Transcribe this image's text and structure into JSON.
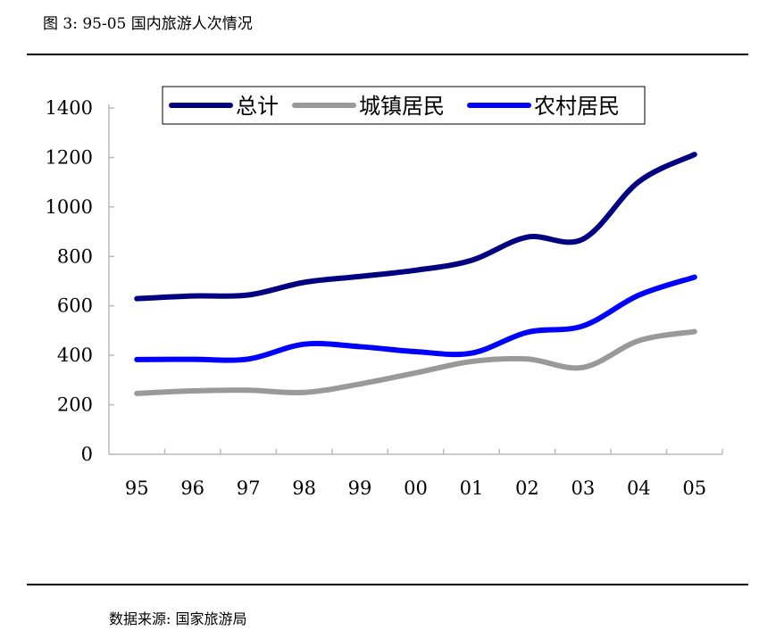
{
  "header": {
    "title": "图 3: 95-05 国内旅游人次情况"
  },
  "footer": {
    "source": "数据来源: 国家旅游局"
  },
  "chart_data": {
    "type": "line",
    "title": "",
    "xlabel": "",
    "ylabel": "",
    "categories": [
      "95",
      "96",
      "97",
      "98",
      "99",
      "00",
      "01",
      "02",
      "03",
      "04",
      "05"
    ],
    "ylim": [
      0,
      1400
    ],
    "yticks": [
      "0",
      "200",
      "400",
      "600",
      "800",
      "1000",
      "1200",
      "1400"
    ],
    "grid": false,
    "legend_position": "top",
    "smooth": true,
    "series": [
      {
        "name": "总计",
        "color": "#000080",
        "values": [
          629,
          640,
          644,
          695,
          719,
          744,
          784,
          878,
          870,
          1102,
          1212
        ]
      },
      {
        "name": "城镇居民",
        "color": "#999999",
        "values": [
          246,
          256,
          259,
          250,
          284,
          329,
          375,
          385,
          351,
          459,
          496
        ]
      },
      {
        "name": "农村居民",
        "color": "#0000FF",
        "values": [
          383,
          384,
          385,
          445,
          435,
          415,
          409,
          493,
          519,
          643,
          716
        ]
      }
    ]
  }
}
